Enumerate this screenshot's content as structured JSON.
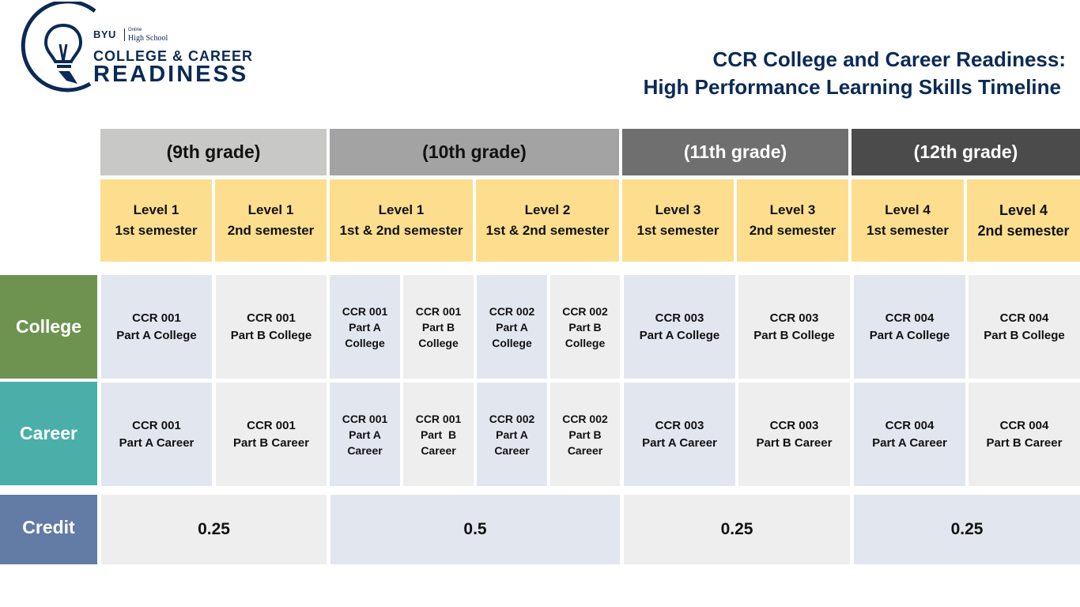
{
  "logo": {
    "brand": "BYU",
    "online": "Online",
    "school": "High School",
    "line1": "COLLEGE & CAREER",
    "line2": "READINESS",
    "icon": "lightbulb-icon"
  },
  "title": {
    "line1": "CCR College and Career Readiness:",
    "line2": "High Performance Learning Skills Timeline"
  },
  "grades": [
    "(9th grade)",
    "(10th grade)",
    "(11th grade)",
    "(12th grade)"
  ],
  "levels": [
    {
      "l1": "Level 1",
      "l2": "1st semester"
    },
    {
      "l1": "Level 1",
      "l2": "2nd semester"
    },
    {
      "l1": "Level 1",
      "l2": "1st & 2nd semester"
    },
    {
      "l1": "Level 2",
      "l2": "1st & 2nd semester"
    },
    {
      "l1": "Level 3",
      "l2": "1st semester"
    },
    {
      "l1": "Level 3",
      "l2": "2nd semester"
    },
    {
      "l1": "Level 4",
      "l2": "1st semester"
    },
    {
      "l1": "Level 4",
      "l2": "2nd semester"
    }
  ],
  "row_labels": {
    "college": "College",
    "career": "Career",
    "credit": "Credit"
  },
  "college": [
    [
      "CCR 001",
      "Part A College"
    ],
    [
      "CCR 001",
      "Part B College"
    ],
    [
      "CCR 001",
      "Part A",
      "College"
    ],
    [
      "CCR 001",
      "Part B",
      "College"
    ],
    [
      "CCR 002",
      "Part A",
      "College"
    ],
    [
      "CCR 002",
      "Part B",
      "College"
    ],
    [
      "CCR 003",
      "Part A College"
    ],
    [
      "CCR 003",
      "Part B College"
    ],
    [
      "CCR 004",
      "Part A College"
    ],
    [
      "CCR 004",
      "Part B College"
    ]
  ],
  "career": [
    [
      "CCR 001",
      "Part A Career"
    ],
    [
      "CCR 001",
      "Part B Career"
    ],
    [
      "CCR 001",
      "Part A",
      "Career"
    ],
    [
      "CCR 001",
      "Part  B",
      "Career"
    ],
    [
      "CCR 002",
      "Part A",
      "Career"
    ],
    [
      "CCR 002",
      "Part B",
      "Career"
    ],
    [
      "CCR 003",
      "Part A Career"
    ],
    [
      "CCR 003",
      "Part B Career"
    ],
    [
      "CCR 004",
      "Part A Career"
    ],
    [
      "CCR 004",
      "Part B Career"
    ]
  ],
  "credits": [
    "0.25",
    "0.5",
    "0.25",
    "0.25"
  ],
  "colors": {
    "navy": "#0b2a55",
    "grade_9": "#c8c9c7",
    "grade_10": "#a3a3a3",
    "grade_11": "#6f6f6f",
    "grade_12": "#4b4b4b",
    "level_bg": "#fdde8e",
    "college": "#6e9350",
    "career": "#4aafa8",
    "credit": "#627ca6",
    "cell_blue": "#e2e6ef",
    "cell_grey": "#eeeeee"
  }
}
